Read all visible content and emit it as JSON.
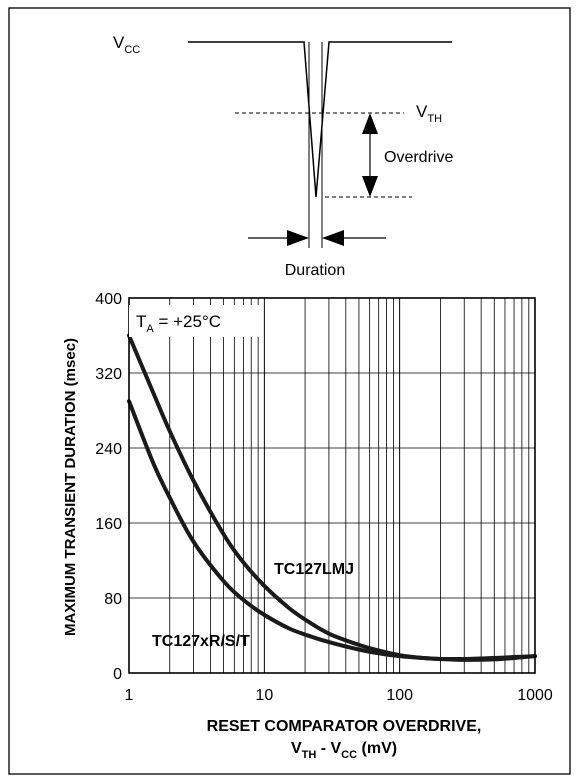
{
  "diagram": {
    "vcc_label": "V",
    "vcc_sub": "CC",
    "vth_label": "V",
    "vth_sub": "TH",
    "overdrive_label": "Overdrive",
    "duration_label": "Duration"
  },
  "chart_data": {
    "type": "line",
    "title": "",
    "annotation": {
      "text": "T",
      "sub": "A",
      "rest": " = +25°C"
    },
    "xlabel": "RESET COMPARATOR OVERDRIVE,",
    "xlabel_line2": {
      "a": "V",
      "a_sub": "TH",
      "mid": " - V",
      "b_sub": "CC",
      "rest": " (mV)"
    },
    "ylabel": "MAXIMUM TRANSIENT DURATION (msec)",
    "x_scale": "log",
    "xlim": [
      1,
      1000
    ],
    "ylim": [
      0,
      400
    ],
    "x_ticks": [
      1,
      10,
      100,
      1000
    ],
    "x_tick_labels": [
      "1",
      "10",
      "100",
      "1000"
    ],
    "y_ticks": [
      0,
      80,
      160,
      240,
      320,
      400
    ],
    "y_tick_labels": [
      "0",
      "80",
      "160",
      "240",
      "320",
      "400"
    ],
    "grid": true,
    "series": [
      {
        "name": "TC127LMJ",
        "x": [
          1,
          1.5,
          2,
          3,
          5,
          7,
          10,
          15,
          20,
          30,
          50,
          70,
          100,
          150,
          200,
          300,
          500,
          700,
          1000
        ],
        "y": [
          360,
          300,
          258,
          205,
          148,
          118,
          93,
          70,
          57,
          42,
          30,
          24,
          19,
          16,
          15,
          14,
          14.5,
          16,
          18
        ]
      },
      {
        "name": "TC127xR/S/T",
        "x": [
          1,
          1.5,
          2,
          3,
          5,
          7,
          10,
          15,
          20,
          30,
          50,
          70,
          100,
          150,
          200,
          300,
          500,
          700,
          1000
        ],
        "y": [
          290,
          225,
          187,
          140,
          98,
          78,
          62,
          48,
          41,
          33,
          25,
          21,
          18,
          16,
          15,
          15,
          16,
          17,
          18
        ]
      }
    ]
  }
}
